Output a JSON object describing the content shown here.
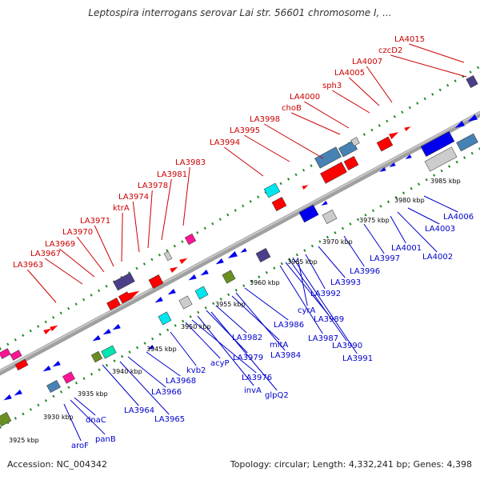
{
  "title": "Leptospira interrogans serovar Lai str. 56601 chromosome I, ...",
  "footer": {
    "accession": "Accession: NC_004342",
    "topology": "Topology: circular; Length: 4,332,241 bp; Genes: 4,398"
  },
  "colors": {
    "top_label": "#cc0000",
    "bottom_label": "#0000cc",
    "backbone": "#a0a0a0",
    "tick": "#228b22"
  },
  "kbp_ticks": [
    "3925 kbp",
    "3930 kbp",
    "3935 kbp",
    "3940 kbp",
    "3945 kbp",
    "3950 kbp",
    "3955 kbp",
    "3960 kbp",
    "3965 kbp",
    "3970 kbp",
    "3975 kbp",
    "3980 kbp",
    "3985 kbp"
  ],
  "top_genes": [
    "LA3963",
    "LA3967",
    "LA3969",
    "LA3970",
    "LA3971",
    "ktrA",
    "LA3974",
    "LA3978",
    "LA3981",
    "LA3983",
    "LA3994",
    "LA3995",
    "LA3998",
    "choB",
    "LA4000",
    "sph3",
    "LA4005",
    "LA4007",
    "czcD2",
    "LA4015"
  ],
  "bottom_genes": [
    "aroF",
    "panB",
    "dnaC",
    "LA3964",
    "LA3965",
    "LA3966",
    "LA3968",
    "kvb2",
    "acyP",
    "LA3976",
    "invA",
    "glpQ2",
    "LA3979",
    "LA3982",
    "mltA",
    "LA3984",
    "LA3986",
    "LA3987",
    "LA3989",
    "LA3990",
    "LA3991",
    "cyrA",
    "LA3992",
    "LA3993",
    "LA3996",
    "LA3997",
    "LA4001",
    "LA4002",
    "LA4003",
    "LA4006"
  ]
}
